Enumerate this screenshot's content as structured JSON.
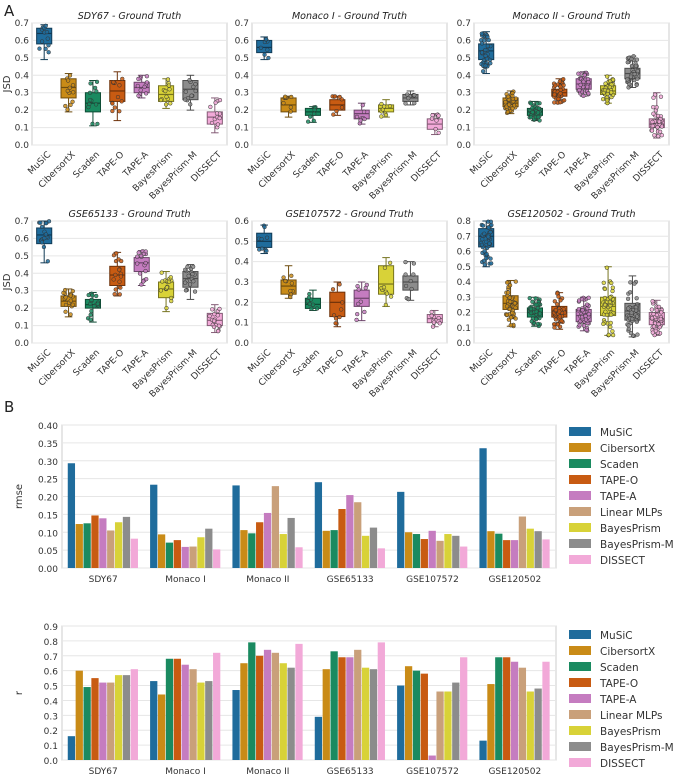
{
  "panel_labels": [
    "A",
    "B"
  ],
  "colors": {
    "MuSiC": "#1f6c9c",
    "CibersortX": "#c98b17",
    "Scaden": "#1a8a60",
    "TAPE-O": "#c85b12",
    "TAPE-A": "#c57cc0",
    "Linear MLPs": "#c9a07a",
    "BayesPrism": "#d8d238",
    "BayesPrism-M": "#8c8c8c",
    "DISSECT": "#f2a9d8"
  },
  "chart_data": [
    {
      "type": "box",
      "title": "SDY67 - Ground Truth",
      "ylabel": "JSD",
      "ylim": [
        0,
        0.7
      ],
      "yticks": [
        "0.0",
        "0.1",
        "0.2",
        "0.3",
        "0.4",
        "0.5",
        "0.6",
        "0.7"
      ],
      "categories": [
        "MuSiC",
        "CibersortX",
        "Scaden",
        "TAPE-O",
        "TAPE-A",
        "BayesPrism",
        "BayesPrism-M",
        "DISSECT"
      ],
      "boxes": [
        {
          "q1": 0.58,
          "median": 0.64,
          "q3": 0.67,
          "min": 0.49,
          "max": 0.69
        },
        {
          "q1": 0.27,
          "median": 0.33,
          "q3": 0.38,
          "min": 0.19,
          "max": 0.41
        },
        {
          "q1": 0.19,
          "median": 0.24,
          "q3": 0.3,
          "min": 0.11,
          "max": 0.37
        },
        {
          "q1": 0.25,
          "median": 0.31,
          "q3": 0.37,
          "min": 0.14,
          "max": 0.42
        },
        {
          "q1": 0.3,
          "median": 0.33,
          "q3": 0.36,
          "min": 0.27,
          "max": 0.4
        },
        {
          "q1": 0.25,
          "median": 0.29,
          "q3": 0.34,
          "min": 0.21,
          "max": 0.38
        },
        {
          "q1": 0.26,
          "median": 0.32,
          "q3": 0.37,
          "min": 0.2,
          "max": 0.4
        },
        {
          "q1": 0.12,
          "median": 0.16,
          "q3": 0.19,
          "min": 0.07,
          "max": 0.27
        }
      ],
      "n_points": 12
    },
    {
      "type": "box",
      "title": "Monaco I - Ground Truth",
      "ylabel": "",
      "ylim": [
        0,
        0.7
      ],
      "yticks": [
        "0.0",
        "0.1",
        "0.2",
        "0.3",
        "0.4",
        "0.5",
        "0.6",
        "0.7"
      ],
      "categories": [
        "MuSiC",
        "CibersortX",
        "Scaden",
        "TAPE-O",
        "TAPE-A",
        "BayesPrism",
        "BayesPrism-M",
        "DISSECT"
      ],
      "boxes": [
        {
          "q1": 0.53,
          "median": 0.56,
          "q3": 0.6,
          "min": 0.49,
          "max": 0.62
        },
        {
          "q1": 0.19,
          "median": 0.23,
          "q3": 0.27,
          "min": 0.16,
          "max": 0.28
        },
        {
          "q1": 0.17,
          "median": 0.19,
          "q3": 0.21,
          "min": 0.13,
          "max": 0.22
        },
        {
          "q1": 0.2,
          "median": 0.23,
          "q3": 0.26,
          "min": 0.17,
          "max": 0.28
        },
        {
          "q1": 0.15,
          "median": 0.18,
          "q3": 0.2,
          "min": 0.12,
          "max": 0.24
        },
        {
          "q1": 0.19,
          "median": 0.21,
          "q3": 0.23,
          "min": 0.16,
          "max": 0.26
        },
        {
          "q1": 0.25,
          "median": 0.27,
          "q3": 0.29,
          "min": 0.23,
          "max": 0.31
        },
        {
          "q1": 0.09,
          "median": 0.12,
          "q3": 0.15,
          "min": 0.06,
          "max": 0.18
        }
      ],
      "n_points": 8
    },
    {
      "type": "box",
      "title": "Monaco II - Ground Truth",
      "ylabel": "",
      "ylim": [
        0,
        0.7
      ],
      "yticks": [
        "0.0",
        "0.1",
        "0.2",
        "0.3",
        "0.4",
        "0.5",
        "0.6",
        "0.7"
      ],
      "categories": [
        "MuSiC",
        "CibersortX",
        "Scaden",
        "TAPE-O",
        "TAPE-A",
        "BayesPrism",
        "BayesPrism-M",
        "DISSECT"
      ],
      "boxes": [
        {
          "q1": 0.49,
          "median": 0.54,
          "q3": 0.58,
          "min": 0.41,
          "max": 0.65
        },
        {
          "q1": 0.22,
          "median": 0.24,
          "q3": 0.27,
          "min": 0.18,
          "max": 0.31
        },
        {
          "q1": 0.17,
          "median": 0.19,
          "q3": 0.21,
          "min": 0.14,
          "max": 0.25
        },
        {
          "q1": 0.28,
          "median": 0.3,
          "q3": 0.32,
          "min": 0.24,
          "max": 0.38
        },
        {
          "q1": 0.32,
          "median": 0.35,
          "q3": 0.38,
          "min": 0.28,
          "max": 0.42
        },
        {
          "q1": 0.29,
          "median": 0.31,
          "q3": 0.34,
          "min": 0.24,
          "max": 0.4
        },
        {
          "q1": 0.38,
          "median": 0.41,
          "q3": 0.44,
          "min": 0.33,
          "max": 0.51
        },
        {
          "q1": 0.1,
          "median": 0.12,
          "q3": 0.15,
          "min": 0.04,
          "max": 0.3
        }
      ],
      "n_points": 40
    },
    {
      "type": "box",
      "title": "GSE65133 - Ground Truth",
      "ylabel": "JSD",
      "ylim": [
        0,
        0.7
      ],
      "yticks": [
        "0.0",
        "0.1",
        "0.2",
        "0.3",
        "0.4",
        "0.5",
        "0.6",
        "0.7"
      ],
      "categories": [
        "MuSiC",
        "CibersortX",
        "Scaden",
        "TAPE-O",
        "TAPE-A",
        "BayesPrism",
        "BayesPrism-M",
        "DISSECT"
      ],
      "boxes": [
        {
          "q1": 0.57,
          "median": 0.62,
          "q3": 0.66,
          "min": 0.46,
          "max": 0.7
        },
        {
          "q1": 0.21,
          "median": 0.24,
          "q3": 0.27,
          "min": 0.15,
          "max": 0.31
        },
        {
          "q1": 0.2,
          "median": 0.22,
          "q3": 0.25,
          "min": 0.12,
          "max": 0.29
        },
        {
          "q1": 0.33,
          "median": 0.39,
          "q3": 0.44,
          "min": 0.27,
          "max": 0.52
        },
        {
          "q1": 0.41,
          "median": 0.46,
          "q3": 0.49,
          "min": 0.33,
          "max": 0.53
        },
        {
          "q1": 0.26,
          "median": 0.31,
          "q3": 0.35,
          "min": 0.18,
          "max": 0.41
        },
        {
          "q1": 0.32,
          "median": 0.37,
          "q3": 0.41,
          "min": 0.25,
          "max": 0.45
        },
        {
          "q1": 0.1,
          "median": 0.13,
          "q3": 0.17,
          "min": 0.06,
          "max": 0.22
        }
      ],
      "n_points": 17
    },
    {
      "type": "box",
      "title": "GSE107572 - Ground Truth",
      "ylabel": "",
      "ylim": [
        0,
        0.6
      ],
      "yticks": [
        "0.0",
        "0.1",
        "0.2",
        "0.3",
        "0.4",
        "0.5",
        "0.6"
      ],
      "categories": [
        "MuSiC",
        "CibersortX",
        "Scaden",
        "TAPE-O",
        "TAPE-A",
        "BayesPrism",
        "BayesPrism-M",
        "DISSECT"
      ],
      "boxes": [
        {
          "q1": 0.47,
          "median": 0.5,
          "q3": 0.54,
          "min": 0.44,
          "max": 0.58
        },
        {
          "q1": 0.24,
          "median": 0.28,
          "q3": 0.31,
          "min": 0.22,
          "max": 0.38
        },
        {
          "q1": 0.17,
          "median": 0.19,
          "q3": 0.22,
          "min": 0.16,
          "max": 0.26
        },
        {
          "q1": 0.13,
          "median": 0.2,
          "q3": 0.25,
          "min": 0.08,
          "max": 0.3
        },
        {
          "q1": 0.18,
          "median": 0.22,
          "q3": 0.26,
          "min": 0.11,
          "max": 0.3
        },
        {
          "q1": 0.24,
          "median": 0.29,
          "q3": 0.38,
          "min": 0.18,
          "max": 0.42
        },
        {
          "q1": 0.26,
          "median": 0.3,
          "q3": 0.33,
          "min": 0.21,
          "max": 0.4
        },
        {
          "q1": 0.1,
          "median": 0.12,
          "q3": 0.14,
          "min": 0.08,
          "max": 0.16
        }
      ],
      "n_points": 9
    },
    {
      "type": "box",
      "title": "GSE120502 - Ground Truth",
      "ylabel": "",
      "ylim": [
        0,
        0.8
      ],
      "yticks": [
        "0.0",
        "0.1",
        "0.2",
        "0.3",
        "0.4",
        "0.5",
        "0.6",
        "0.7",
        "0.8"
      ],
      "categories": [
        "MuSiC",
        "CibersortX",
        "Scaden",
        "TAPE-O",
        "TAPE-A",
        "BayesPrism",
        "BayesPrism-M",
        "DISSECT"
      ],
      "boxes": [
        {
          "q1": 0.63,
          "median": 0.7,
          "q3": 0.75,
          "min": 0.5,
          "max": 0.8
        },
        {
          "q1": 0.22,
          "median": 0.26,
          "q3": 0.31,
          "min": 0.11,
          "max": 0.41
        },
        {
          "q1": 0.17,
          "median": 0.2,
          "q3": 0.23,
          "min": 0.11,
          "max": 0.3
        },
        {
          "q1": 0.17,
          "median": 0.21,
          "q3": 0.24,
          "min": 0.09,
          "max": 0.33
        },
        {
          "q1": 0.14,
          "median": 0.18,
          "q3": 0.22,
          "min": 0.08,
          "max": 0.3
        },
        {
          "q1": 0.18,
          "median": 0.24,
          "q3": 0.3,
          "min": 0.05,
          "max": 0.5
        },
        {
          "q1": 0.15,
          "median": 0.21,
          "q3": 0.26,
          "min": 0.04,
          "max": 0.44
        },
        {
          "q1": 0.12,
          "median": 0.16,
          "q3": 0.2,
          "min": 0.05,
          "max": 0.28
        }
      ],
      "n_points": 45
    },
    {
      "type": "bar",
      "title": "",
      "ylabel": "rmse",
      "ylim": [
        0,
        0.4
      ],
      "yticks": [
        "0.00",
        "0.05",
        "0.10",
        "0.15",
        "0.20",
        "0.25",
        "0.30",
        "0.35",
        "0.40"
      ],
      "categories": [
        "SDY67",
        "Monaco I",
        "Monaco II",
        "GSE65133",
        "GSE107572",
        "GSE120502"
      ],
      "series": [
        {
          "name": "MuSiC",
          "values": [
            0.293,
            0.233,
            0.231,
            0.24,
            0.213,
            0.335
          ]
        },
        {
          "name": "CibersortX",
          "values": [
            0.123,
            0.094,
            0.106,
            0.104,
            0.1,
            0.103
          ]
        },
        {
          "name": "Scaden",
          "values": [
            0.125,
            0.071,
            0.097,
            0.106,
            0.095,
            0.096
          ]
        },
        {
          "name": "TAPE-O",
          "values": [
            0.147,
            0.078,
            0.128,
            0.165,
            0.081,
            0.078
          ]
        },
        {
          "name": "TAPE-A",
          "values": [
            0.139,
            0.059,
            0.154,
            0.204,
            0.104,
            0.078
          ]
        },
        {
          "name": "Linear MLPs",
          "values": [
            0.105,
            0.06,
            0.229,
            0.184,
            0.076,
            0.144
          ]
        },
        {
          "name": "BayesPrism",
          "values": [
            0.128,
            0.086,
            0.095,
            0.09,
            0.095,
            0.11
          ]
        },
        {
          "name": "BayesPrism-M",
          "values": [
            0.143,
            0.11,
            0.14,
            0.113,
            0.09,
            0.103
          ]
        },
        {
          "name": "DISSECT",
          "values": [
            0.082,
            0.052,
            0.058,
            0.055,
            0.06,
            0.08
          ]
        }
      ]
    },
    {
      "type": "bar",
      "title": "",
      "ylabel": "r",
      "ylim": [
        0,
        0.9
      ],
      "yticks": [
        "0.0",
        "0.1",
        "0.2",
        "0.3",
        "0.4",
        "0.5",
        "0.6",
        "0.7",
        "0.8",
        "0.9"
      ],
      "categories": [
        "SDY67",
        "Monaco I",
        "Monaco II",
        "GSE65133",
        "GSE107572",
        "GSE120502"
      ],
      "series": [
        {
          "name": "MuSiC",
          "values": [
            0.16,
            0.53,
            0.47,
            0.29,
            0.5,
            0.13
          ]
        },
        {
          "name": "CibersortX",
          "values": [
            0.6,
            0.44,
            0.65,
            0.61,
            0.63,
            0.51
          ]
        },
        {
          "name": "Scaden",
          "values": [
            0.49,
            0.68,
            0.79,
            0.73,
            0.6,
            0.69
          ]
        },
        {
          "name": "TAPE-O",
          "values": [
            0.55,
            0.68,
            0.7,
            0.69,
            0.58,
            0.69
          ]
        },
        {
          "name": "TAPE-A",
          "values": [
            0.52,
            0.64,
            0.74,
            0.69,
            0.03,
            0.66
          ]
        },
        {
          "name": "Linear MLPs",
          "values": [
            0.52,
            0.61,
            0.72,
            0.74,
            0.46,
            0.62
          ]
        },
        {
          "name": "BayesPrism",
          "values": [
            0.57,
            0.52,
            0.65,
            0.62,
            0.46,
            0.46
          ]
        },
        {
          "name": "BayesPrism-M",
          "values": [
            0.57,
            0.53,
            0.62,
            0.61,
            0.52,
            0.48
          ]
        },
        {
          "name": "DISSECT",
          "values": [
            0.61,
            0.72,
            0.78,
            0.79,
            0.69,
            0.66
          ]
        }
      ]
    }
  ]
}
